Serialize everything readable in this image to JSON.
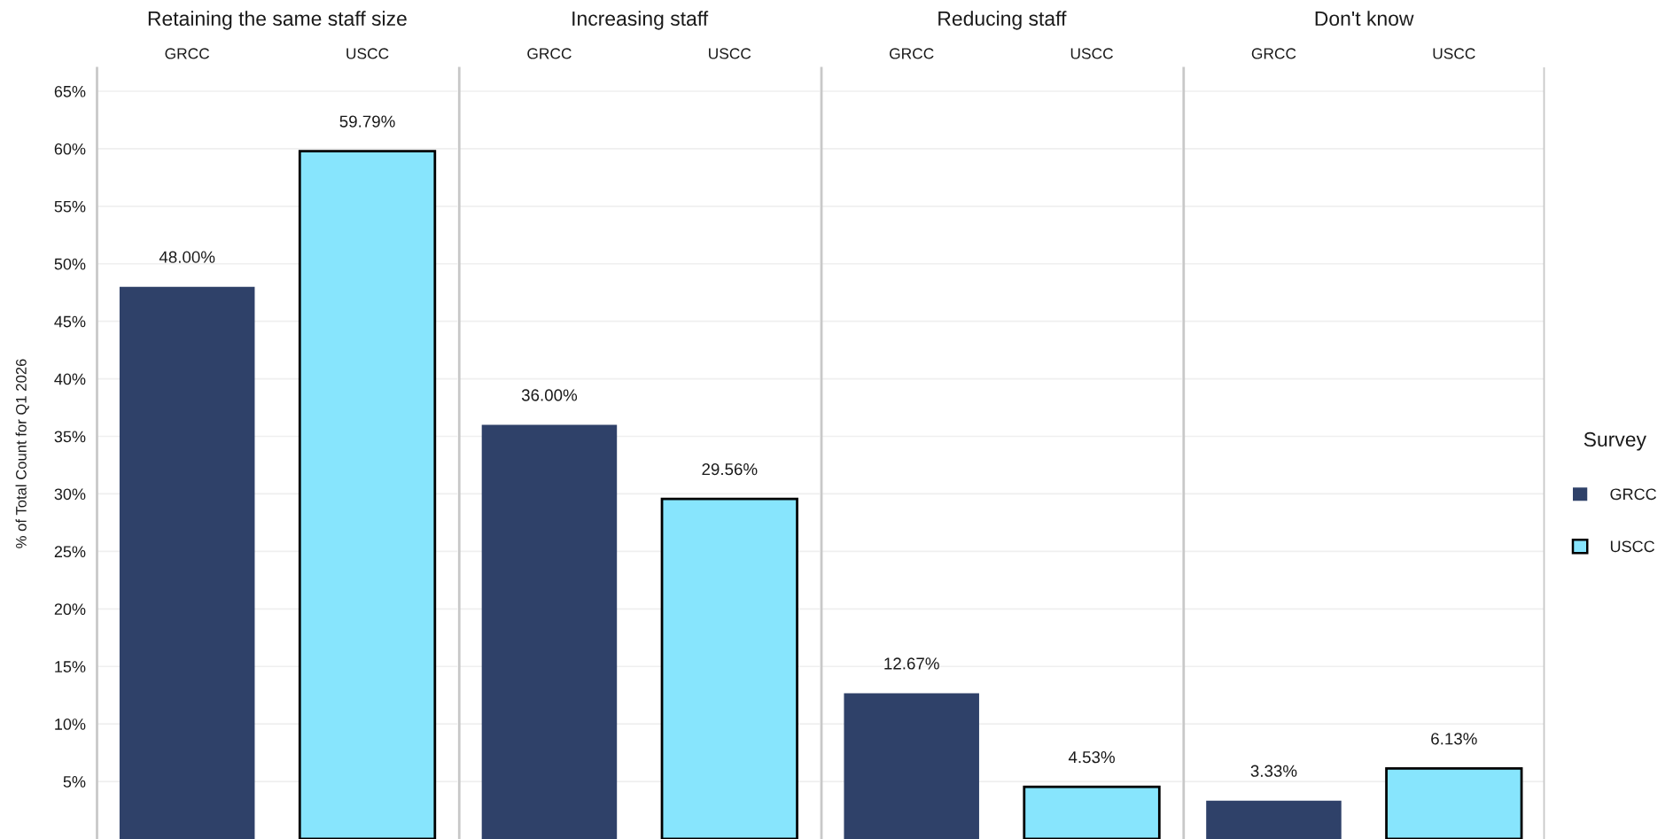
{
  "chart_data": [
    {
      "type": "bar",
      "title": "Retaining the same staff size",
      "ylabel": "% of Total Count for Q1 2026",
      "categories": [
        "GRCC",
        "USCC"
      ],
      "series": [
        {
          "name": "GRCC",
          "color": "#2f4169",
          "values": [
            48.0,
            null
          ],
          "value_labels": [
            "48.00%",
            null
          ]
        },
        {
          "name": "USCC",
          "color": "#87e5fd",
          "values": [
            null,
            59.79
          ],
          "value_labels": [
            null,
            "59.79%"
          ]
        }
      ],
      "ylim": [
        0,
        67
      ],
      "yticks": [
        {
          "value": 5,
          "label": "5%"
        },
        {
          "value": 10,
          "label": "10%"
        },
        {
          "value": 15,
          "label": "15%"
        },
        {
          "value": 20,
          "label": "20%"
        },
        {
          "value": 25,
          "label": "25%"
        },
        {
          "value": 30,
          "label": "30%"
        },
        {
          "value": 35,
          "label": "35%"
        },
        {
          "value": 40,
          "label": "40%"
        },
        {
          "value": 45,
          "label": "45%"
        },
        {
          "value": 50,
          "label": "50%"
        },
        {
          "value": 55,
          "label": "55%"
        },
        {
          "value": 60,
          "label": "60%"
        },
        {
          "value": 65,
          "label": "65%"
        }
      ],
      "grid": "y",
      "legend": "right",
      "legend_title": "Survey"
    },
    {
      "type": "bar",
      "title": "Increasing staff",
      "categories": [
        "GRCC",
        "USCC"
      ],
      "values": [
        36.0,
        29.56
      ],
      "colors": [
        "#2f4169",
        "#87e5fd"
      ],
      "value_labels": [
        "36.00%",
        "29.56%"
      ],
      "ylim": [
        0,
        67
      ],
      "yticks": [
        5,
        10,
        15,
        20,
        25,
        30,
        35,
        40,
        45,
        50,
        55,
        60,
        65
      ],
      "grid": "y",
      "tick_labels": "x"
    },
    {
      "type": "bar",
      "title": "Reducing staff",
      "categories": [
        "GRCC",
        "USCC"
      ],
      "values": [
        12.67,
        4.53
      ],
      "colors": [
        "#2f4169",
        "#87e5fd"
      ],
      "value_labels": [
        "12.67%",
        "4.53%"
      ],
      "ylim": [
        0,
        67
      ],
      "yticks": [
        5,
        10,
        15,
        20,
        25,
        30,
        35,
        40,
        45,
        50,
        55,
        60,
        65
      ],
      "grid": "y",
      "tick_labels": "x"
    },
    {
      "type": "bar",
      "title": "Don't know",
      "categories": [
        "GRCC",
        "USCC"
      ],
      "values": [
        3.33,
        6.13
      ],
      "colors": [
        "#2f4169",
        "#87e5fd"
      ],
      "value_labels": [
        "3.33%",
        "6.13%"
      ],
      "ylim": [
        0,
        67
      ],
      "yticks": [
        5,
        10,
        15,
        20,
        25,
        30,
        35,
        40,
        45,
        50,
        55,
        60,
        65
      ],
      "grid": "y",
      "tick_labels": "x"
    }
  ]
}
